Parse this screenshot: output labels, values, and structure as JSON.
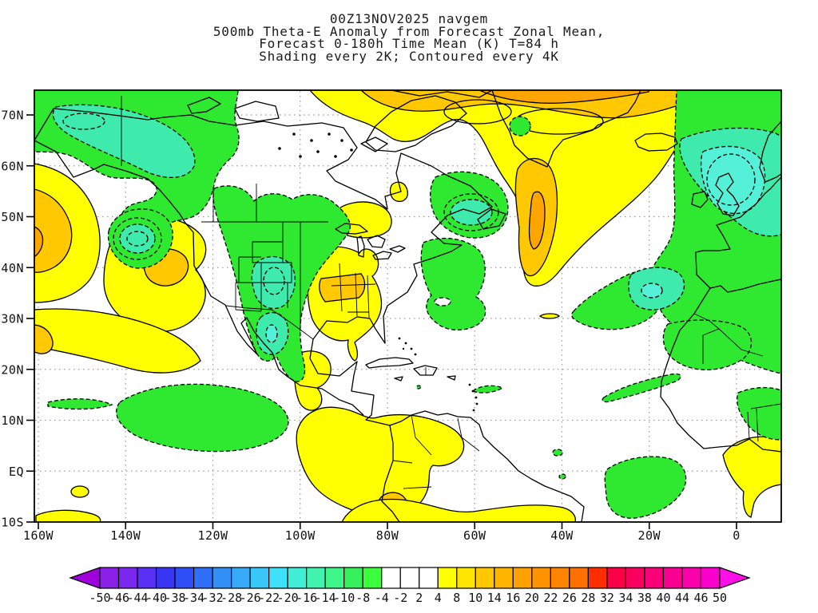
{
  "title": {
    "lines": [
      "00Z13NOV2025 navgem",
      "500mb Theta-E Anomaly from Forecast Zonal Mean,",
      "Forecast 0-180h Time Mean (K) T=84 h",
      "Shading every 2K; Contoured every 4K"
    ]
  },
  "axes": {
    "lat_labels": [
      "70N",
      "60N",
      "50N",
      "40N",
      "30N",
      "20N",
      "10N",
      "EQ",
      "10S"
    ],
    "lon_labels": [
      "160W",
      "140W",
      "120W",
      "100W",
      "80W",
      "60W",
      "40W",
      "20W",
      "0"
    ]
  },
  "colorbar": {
    "boundary_labels": [
      "-50",
      "-46",
      "-44",
      "-40",
      "-38",
      "-34",
      "-32",
      "-28",
      "-26",
      "-22",
      "-20",
      "-16",
      "-14",
      "-10",
      "-8",
      "-4",
      "-2",
      "2",
      "4",
      "8",
      "10",
      "14",
      "16",
      "20",
      "22",
      "26",
      "28",
      "32",
      "34",
      "38",
      "40",
      "44",
      "46",
      "50"
    ],
    "cell_colors": [
      "#8B20E8",
      "#7A28F0",
      "#5A2FF5",
      "#3A35F5",
      "#2E4FF5",
      "#306FF8",
      "#338FF8",
      "#36AAF8",
      "#3AC8FA",
      "#3EE0FA",
      "#40EED8",
      "#40F4B0",
      "#3EF788",
      "#36F05C",
      "#3CFF3C",
      "#FFFFFF",
      "#FFFFFF",
      "#FFFFFF",
      "#FFFF00",
      "#FFE400",
      "#FFC800",
      "#FFB400",
      "#FFA200",
      "#FF9400",
      "#FF8400",
      "#FF7000",
      "#FF2D00",
      "#FB0045",
      "#FA005F",
      "#FA0078",
      "#F90092",
      "#F900AC",
      "#FB00CC"
    ],
    "left_arrow_color": "#A000DC",
    "right_arrow_color": "#FF10E6"
  },
  "map": {
    "shade_colors": {
      "positive_yellow": "#FFFF00",
      "positive_orange": "#FFC800",
      "positive_deep_orange": "#FFA500",
      "negative_green": "#2FE830",
      "negative_teal": "#3EEAAC",
      "negative_cyan": "#55F0D8"
    },
    "features": [
      {
        "region": "Alaska / NW Canada",
        "sign": "negative"
      },
      {
        "region": "NE Pacific (left edge 40-55N)",
        "sign": "positive"
      },
      {
        "region": "US Rockies through Mexico",
        "sign": "negative"
      },
      {
        "region": "US Southeast",
        "sign": "positive"
      },
      {
        "region": "Quebec / Labrador",
        "sign": "negative"
      },
      {
        "region": "Greenland and central North Atlantic plume",
        "sign": "positive"
      },
      {
        "region": "NE Atlantic / Europe / NW Africa",
        "sign": "negative"
      },
      {
        "region": "Tropical east Pacific and NW South America",
        "sign": "positive"
      },
      {
        "region": "Tropical central Pacific and tropical Atlantic",
        "sign": "negative"
      }
    ]
  }
}
